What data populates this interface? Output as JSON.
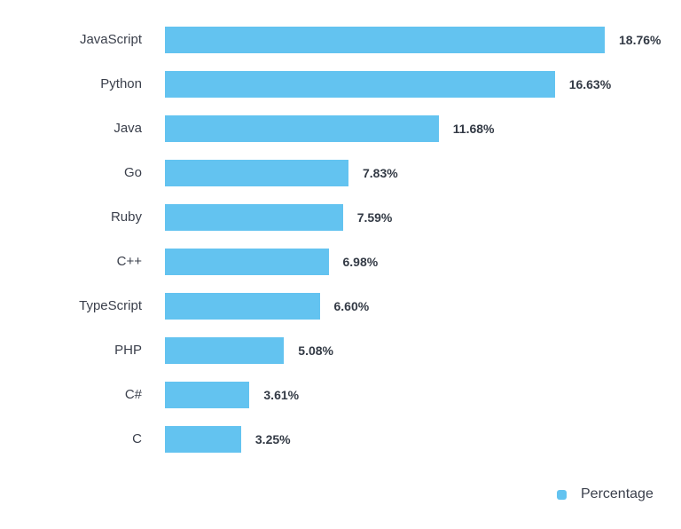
{
  "chart_data": {
    "type": "bar",
    "orientation": "horizontal",
    "title": "",
    "xlabel": "",
    "ylabel": "",
    "categories": [
      "JavaScript",
      "Python",
      "Java",
      "Go",
      "Ruby",
      "C++",
      "TypeScript",
      "PHP",
      "C#",
      "C"
    ],
    "series": [
      {
        "name": "Percentage",
        "color": "#63c3f0",
        "values": [
          18.76,
          16.63,
          11.68,
          7.83,
          7.59,
          6.98,
          6.6,
          5.08,
          3.61,
          3.25
        ]
      }
    ],
    "value_labels": [
      "18.76%",
      "16.63%",
      "11.68%",
      "7.83%",
      "7.59%",
      "6.98%",
      "6.60%",
      "5.08%",
      "3.61%",
      "3.25%"
    ],
    "grid": false,
    "axes_visible": false,
    "legend_position": "bottom-right",
    "xlim": [
      0,
      20
    ]
  },
  "legend": {
    "label": "Percentage",
    "color": "#63c3f0"
  }
}
